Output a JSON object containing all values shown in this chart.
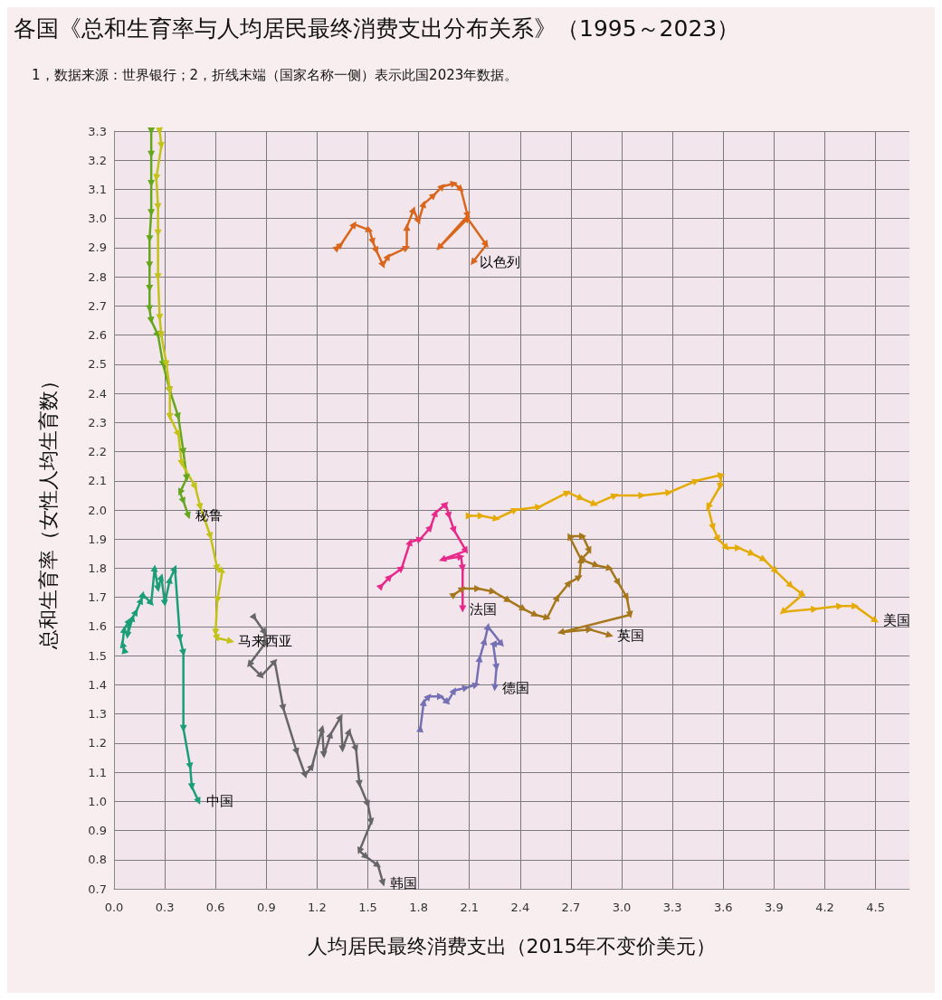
{
  "chart_data": {
    "type": "line",
    "title": "各国《总和生育率与人均居民最终消费支出分布关系》（1995～2023）",
    "subtitle": "1，数据来源：世界银行；2，折线末端（国家名称一侧）表示此国2023年数据。",
    "xlabel": "人均居民最终消费支出（2015年不变价美元）",
    "ylabel": "总和生育率（女性人均生育数）",
    "xlim": [
      0,
      4.7
    ],
    "ylim": [
      0.7,
      3.3
    ],
    "xticks": [
      {
        "value": 0,
        "label": "0.0"
      },
      0.3,
      0.6,
      0.9,
      1.2,
      1.5,
      1.8,
      2.1,
      2.4,
      2.7,
      {
        "value": 3,
        "label": "3.0"
      },
      3.3,
      3.6,
      3.9,
      4.2,
      4.5
    ],
    "yticks": [
      0.7,
      0.8,
      0.9,
      {
        "value": 1,
        "label": "1.0"
      },
      1.1,
      1.2,
      1.3,
      1.4,
      1.5,
      1.6,
      1.7,
      1.8,
      1.9,
      {
        "value": 2,
        "label": "2.0"
      },
      2.1,
      2.2,
      2.3,
      2.4,
      2.5,
      2.6,
      2.7,
      2.8,
      2.9,
      {
        "value": 3,
        "label": "3.0"
      },
      3.1,
      3.2,
      3.3
    ],
    "grid": true,
    "legend": false,
    "marker": "triangle",
    "line_style": "solid",
    "series": [
      {
        "name": "以色列",
        "color": "#d9661c",
        "x": [
          1.32,
          1.34,
          1.42,
          1.51,
          1.53,
          1.55,
          1.59,
          1.62,
          1.73,
          1.73,
          1.77,
          1.8,
          1.83,
          1.89,
          1.94,
          2.01,
          2.05,
          2.09,
          1.92,
          2.09,
          2.2,
          2.12
        ],
        "values": [
          2.9,
          2.91,
          2.98,
          2.96,
          2.92,
          2.89,
          2.84,
          2.87,
          2.9,
          2.97,
          3.03,
          2.99,
          3.05,
          3.08,
          3.11,
          3.12,
          3.1,
          3.01,
          2.9,
          3.0,
          2.91,
          2.85
        ]
      },
      {
        "name": "秘鲁",
        "color": "#66a61e",
        "x": [
          0.22,
          0.22,
          0.22,
          0.22,
          0.21,
          0.21,
          0.21,
          0.21,
          0.22,
          0.26,
          0.29,
          0.33,
          0.38,
          0.41,
          0.43,
          0.39,
          0.41,
          0.44
        ],
        "values": [
          3.3,
          3.22,
          3.12,
          3.02,
          2.93,
          2.84,
          2.76,
          2.69,
          2.65,
          2.6,
          2.5,
          2.41,
          2.32,
          2.2,
          2.11,
          2.06,
          2.03,
          1.98
        ]
      },
      {
        "name": "马来西亚",
        "color": "#c2c219",
        "x": [
          0.27,
          0.28,
          0.25,
          0.26,
          0.26,
          0.26,
          0.27,
          0.28,
          0.31,
          0.33,
          0.33,
          0.38,
          0.4,
          0.48,
          0.51,
          0.57,
          0.61,
          0.64,
          0.61,
          0.6,
          0.61,
          0.69
        ],
        "values": [
          3.3,
          3.25,
          3.14,
          3.04,
          2.95,
          2.8,
          2.66,
          2.6,
          2.5,
          2.41,
          2.32,
          2.26,
          2.16,
          2.08,
          2.01,
          1.91,
          1.8,
          1.79,
          1.69,
          1.58,
          1.56,
          1.55
        ]
      },
      {
        "name": "中国",
        "color": "#1b9e77",
        "x": [
          0.06,
          0.05,
          0.06,
          0.09,
          0.08,
          0.11,
          0.13,
          0.16,
          0.17,
          0.22,
          0.24,
          0.26,
          0.28,
          0.3,
          0.33,
          0.36,
          0.39,
          0.41,
          0.41,
          0.45,
          0.46,
          0.5
        ],
        "values": [
          1.52,
          1.54,
          1.59,
          1.62,
          1.57,
          1.63,
          1.65,
          1.69,
          1.71,
          1.68,
          1.8,
          1.73,
          1.77,
          1.68,
          1.76,
          1.8,
          1.56,
          1.51,
          1.25,
          1.12,
          1.05,
          1.0
        ]
      },
      {
        "name": "韩国",
        "color": "#666666",
        "x": [
          0.83,
          0.89,
          0.89,
          0.8,
          0.87,
          0.95,
          1.0,
          1.08,
          1.13,
          1.17,
          1.23,
          1.24,
          1.28,
          1.34,
          1.35,
          1.39,
          1.43,
          1.45,
          1.5,
          1.52,
          1.45,
          1.49,
          1.56,
          1.59
        ],
        "values": [
          1.63,
          1.58,
          1.54,
          1.47,
          1.43,
          1.48,
          1.32,
          1.17,
          1.09,
          1.12,
          1.25,
          1.16,
          1.23,
          1.29,
          1.18,
          1.24,
          1.18,
          1.06,
          0.99,
          0.93,
          0.83,
          0.81,
          0.78,
          0.72
        ]
      },
      {
        "name": "法国",
        "color": "#e7298a",
        "x": [
          1.58,
          1.63,
          1.7,
          1.75,
          1.81,
          1.87,
          1.9,
          1.96,
          1.98,
          2.01,
          2.08,
          1.94,
          2.05,
          2.06,
          2.06
        ],
        "values": [
          1.74,
          1.77,
          1.8,
          1.89,
          1.9,
          1.94,
          1.99,
          2.02,
          1.98,
          1.93,
          1.86,
          1.83,
          1.84,
          1.8,
          1.66
        ]
      },
      {
        "name": "英国",
        "color": "#a6761d",
        "x": [
          2.01,
          2.06,
          2.15,
          2.24,
          2.33,
          2.42,
          2.49,
          2.56,
          2.62,
          2.69,
          2.75,
          2.76,
          2.69,
          2.77,
          2.81,
          2.76,
          2.85,
          2.93,
          2.98,
          3.03,
          3.05,
          2.64,
          2.81,
          2.93
        ],
        "values": [
          1.71,
          1.73,
          1.73,
          1.72,
          1.69,
          1.66,
          1.64,
          1.63,
          1.7,
          1.75,
          1.77,
          1.83,
          1.91,
          1.91,
          1.86,
          1.83,
          1.81,
          1.8,
          1.75,
          1.7,
          1.64,
          1.58,
          1.59,
          1.57
        ]
      },
      {
        "name": "德国",
        "color": "#7570b3",
        "x": [
          1.81,
          1.83,
          1.86,
          1.93,
          1.97,
          2.01,
          2.08,
          2.14,
          2.16,
          2.19,
          2.21,
          2.29,
          2.24,
          2.26,
          2.25
        ],
        "values": [
          1.25,
          1.34,
          1.36,
          1.36,
          1.34,
          1.38,
          1.39,
          1.4,
          1.49,
          1.55,
          1.6,
          1.54,
          1.54,
          1.46,
          1.39
        ]
      },
      {
        "name": "美国",
        "color": "#e6ab02",
        "x": [
          2.1,
          2.17,
          2.26,
          2.37,
          2.51,
          2.68,
          2.76,
          2.84,
          2.96,
          3.12,
          3.28,
          3.44,
          3.59,
          3.58,
          3.51,
          3.54,
          3.57,
          3.62,
          3.69,
          3.77,
          3.84,
          3.91,
          4.0,
          4.07,
          3.95,
          4.14,
          4.29,
          4.38,
          4.5
        ],
        "values": [
          1.98,
          1.98,
          1.97,
          2.0,
          2.01,
          2.06,
          2.04,
          2.02,
          2.05,
          2.05,
          2.06,
          2.1,
          2.12,
          2.08,
          2.01,
          1.94,
          1.9,
          1.87,
          1.87,
          1.85,
          1.83,
          1.79,
          1.74,
          1.71,
          1.65,
          1.66,
          1.67,
          1.67,
          1.62
        ]
      }
    ]
  }
}
